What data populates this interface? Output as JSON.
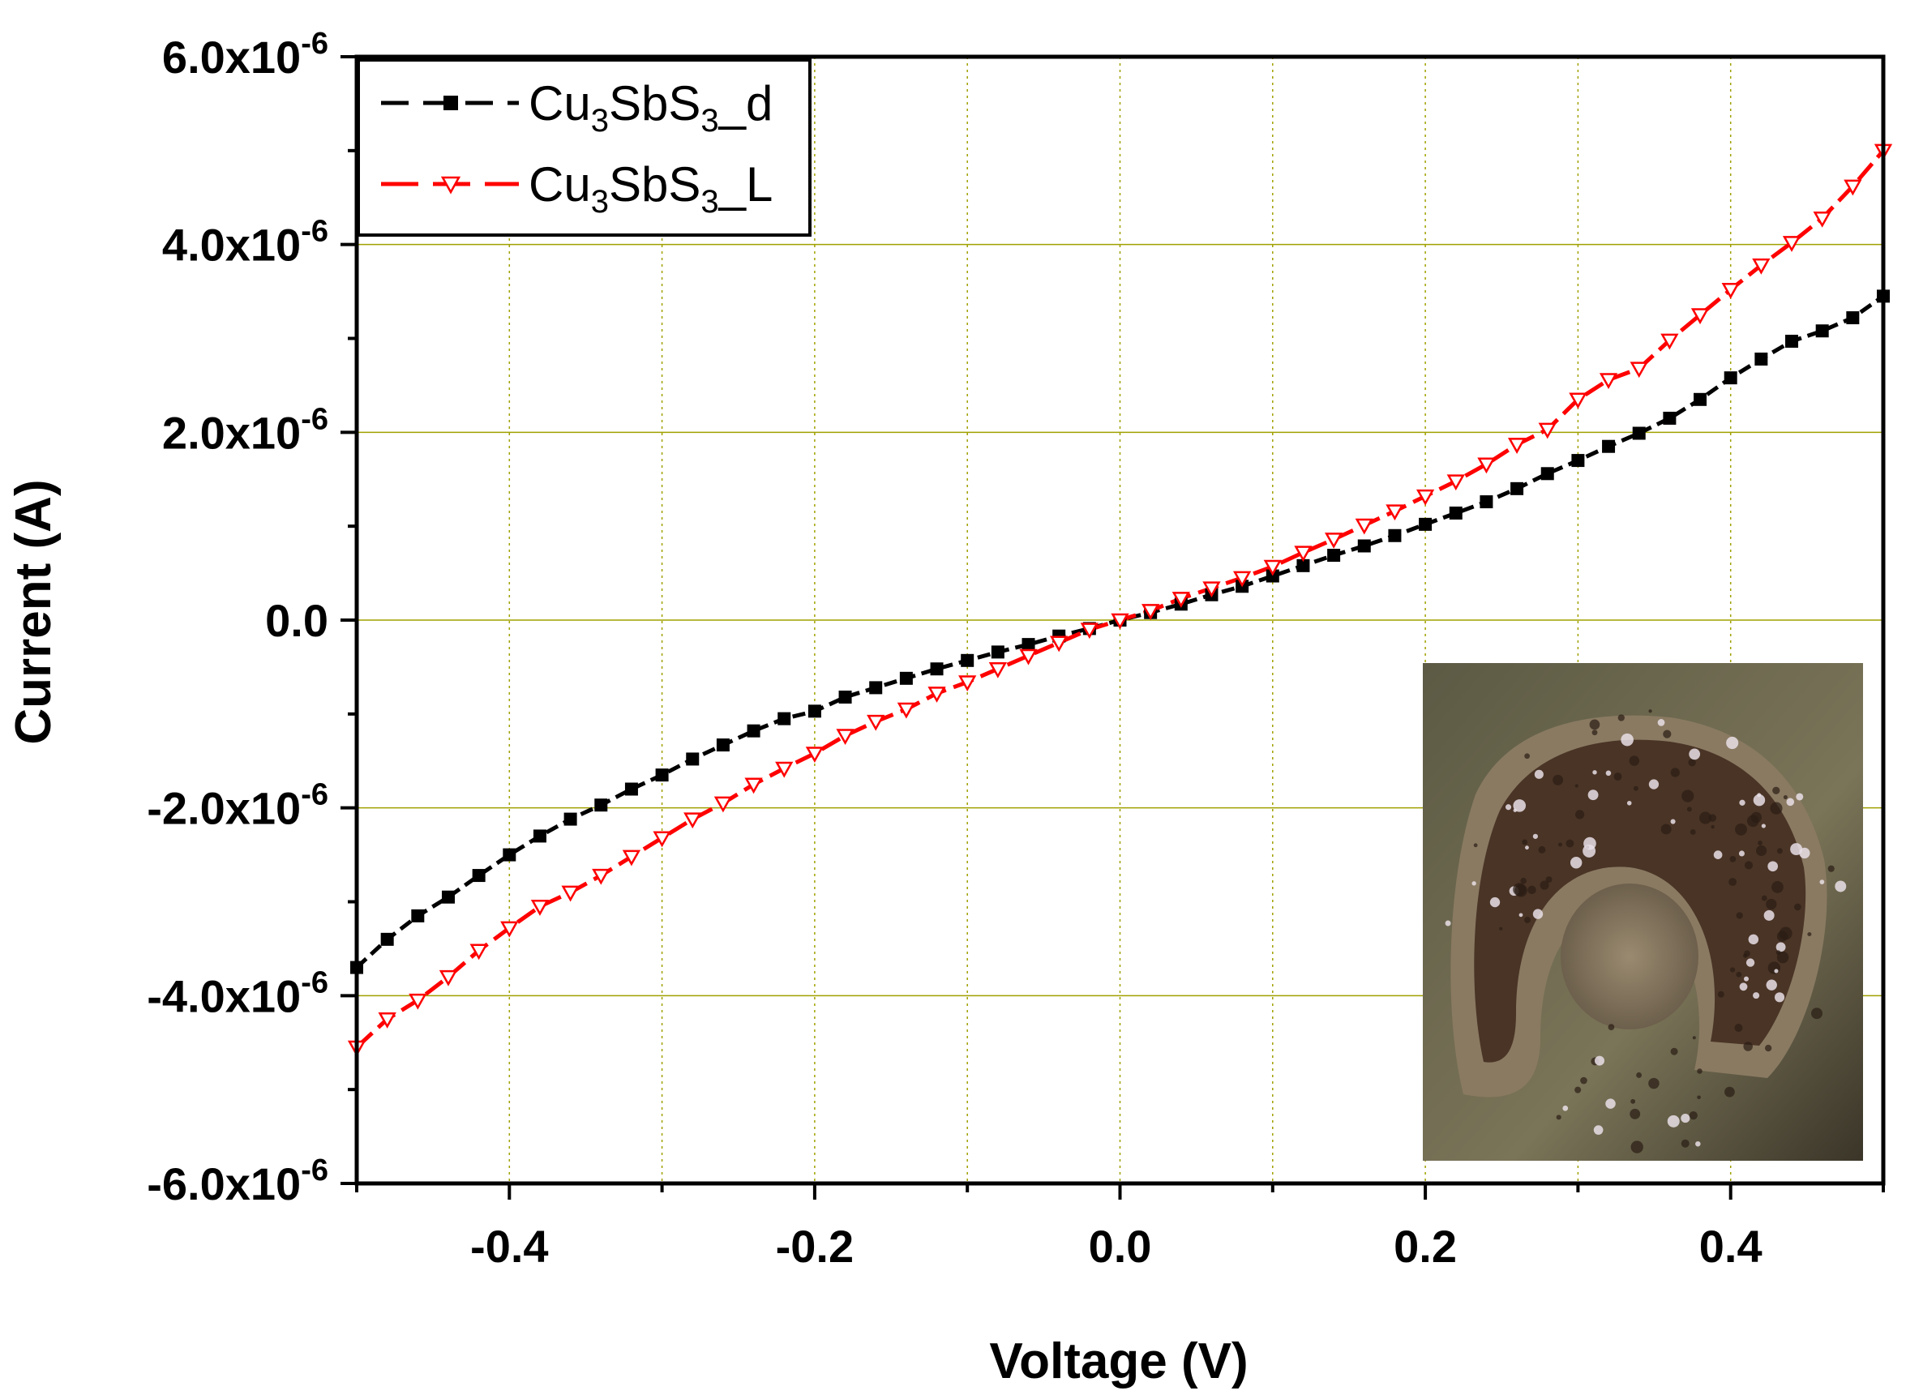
{
  "chart_data": {
    "type": "line",
    "xlabel": "Voltage (V)",
    "ylabel": "Current (A)",
    "xlim": [
      -0.5,
      0.5
    ],
    "ylim": [
      -6e-06,
      6e-06
    ],
    "x_ticks": [
      -0.4,
      -0.2,
      0.0,
      0.2,
      0.4
    ],
    "x_tick_labels": [
      "-0.4",
      "-0.2",
      "0.0",
      "0.2",
      "0.4"
    ],
    "y_ticks": [
      6e-06,
      4e-06,
      2e-06,
      0,
      -2e-06,
      -4e-06,
      -6e-06
    ],
    "y_tick_labels": [
      {
        "base": "6.0x10",
        "exp": "-6"
      },
      {
        "base": "4.0x10",
        "exp": "-6"
      },
      {
        "base": "2.0x10",
        "exp": "-6"
      },
      {
        "base": "0.0",
        "exp": ""
      },
      {
        "base": "-2.0x10",
        "exp": "-6"
      },
      {
        "base": "-4.0x10",
        "exp": "-6"
      },
      {
        "base": "-6.0x10",
        "exp": "-6"
      }
    ],
    "grid": true,
    "legend_position": "top-left",
    "inset": "micrograph of sample (lower-right)",
    "x": [
      -0.5,
      -0.48,
      -0.46,
      -0.44,
      -0.42,
      -0.4,
      -0.38,
      -0.36,
      -0.34,
      -0.32,
      -0.3,
      -0.28,
      -0.26,
      -0.24,
      -0.22,
      -0.2,
      -0.18,
      -0.16,
      -0.14,
      -0.12,
      -0.1,
      -0.08,
      -0.06,
      -0.04,
      -0.02,
      0.0,
      0.02,
      0.04,
      0.06,
      0.08,
      0.1,
      0.12,
      0.14,
      0.16,
      0.18,
      0.2,
      0.22,
      0.24,
      0.26,
      0.28,
      0.3,
      0.32,
      0.34,
      0.36,
      0.38,
      0.4,
      0.42,
      0.44,
      0.46,
      0.48,
      0.5
    ],
    "series": [
      {
        "name": "Cu3SbS3_d",
        "label": {
          "a": "Cu",
          "s1": "3",
          "b": "SbS",
          "s2": "3",
          "c": "_d"
        },
        "color": "#000000",
        "marker": "square",
        "values": [
          -3.7e-06,
          -3.4e-06,
          -3.15e-06,
          -2.95e-06,
          -2.72e-06,
          -2.5e-06,
          -2.3e-06,
          -2.12e-06,
          -1.97e-06,
          -1.8e-06,
          -1.65e-06,
          -1.48e-06,
          -1.33e-06,
          -1.18e-06,
          -1.05e-06,
          -9.7e-07,
          -8.2e-07,
          -7.2e-07,
          -6.2e-07,
          -5.2e-07,
          -4.3e-07,
          -3.4e-07,
          -2.6e-07,
          -1.7e-07,
          -9e-08,
          0.0,
          8e-08,
          1.7e-07,
          2.7e-07,
          3.6e-07,
          4.7e-07,
          5.8e-07,
          6.9e-07,
          7.9e-07,
          9e-07,
          1.02e-06,
          1.14e-06,
          1.26e-06,
          1.4e-06,
          1.56e-06,
          1.7e-06,
          1.85e-06,
          1.99e-06,
          2.15e-06,
          2.35e-06,
          2.58e-06,
          2.78e-06,
          2.97e-06,
          3.08e-06,
          3.22e-06,
          3.45e-06
        ]
      },
      {
        "name": "Cu3SbS3_L",
        "label": {
          "a": "Cu",
          "s1": "3",
          "b": "SbS",
          "s2": "3",
          "c": "_L"
        },
        "color": "#ff0000",
        "marker": "triangle-down-open",
        "values": [
          -4.55e-06,
          -4.25e-06,
          -4.05e-06,
          -3.8e-06,
          -3.52e-06,
          -3.28e-06,
          -3.05e-06,
          -2.9e-06,
          -2.72e-06,
          -2.52e-06,
          -2.32e-06,
          -2.12e-06,
          -1.95e-06,
          -1.75e-06,
          -1.58e-06,
          -1.42e-06,
          -1.23e-06,
          -1.08e-06,
          -9.5e-07,
          -7.8e-07,
          -6.6e-07,
          -5.2e-07,
          -3.8e-07,
          -2.4e-07,
          -1e-07,
          0.0,
          1e-07,
          2.3e-07,
          3.4e-07,
          4.5e-07,
          5.7e-07,
          7.2e-07,
          8.6e-07,
          1.01e-06,
          1.16e-06,
          1.32e-06,
          1.48e-06,
          1.66e-06,
          1.87e-06,
          2.03e-06,
          2.35e-06,
          2.56e-06,
          2.68e-06,
          2.98e-06,
          3.25e-06,
          3.52e-06,
          3.78e-06,
          4.02e-06,
          4.28e-06,
          4.62e-06,
          5e-06
        ]
      }
    ]
  }
}
